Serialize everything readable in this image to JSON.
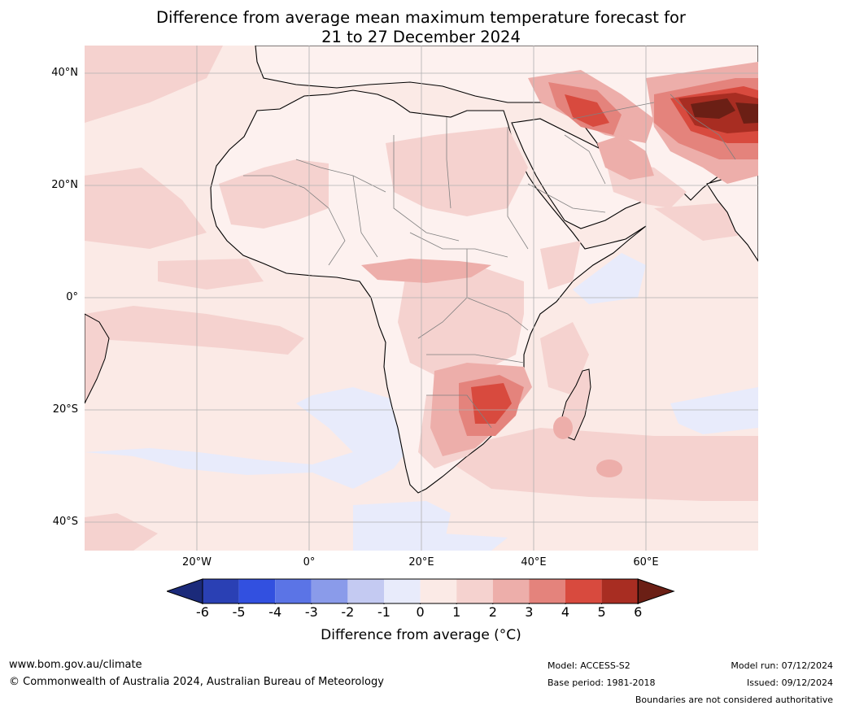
{
  "title": {
    "line1": "Difference from average mean maximum temperature forecast for",
    "line2": "21 to 27 December 2024"
  },
  "map": {
    "lat_labels": [
      "40°N",
      "20°N",
      "0°",
      "20°S",
      "40°S"
    ],
    "lon_labels": [
      "20°W",
      "0°",
      "20°E",
      "40°E",
      "60°E"
    ],
    "ocean_color": "#fbeae6",
    "land_fill": "#ffffff"
  },
  "colorbar": {
    "label": "Difference from average (°C)",
    "ticks": [
      "-6",
      "-5",
      "-4",
      "-3",
      "-2",
      "-1",
      "0",
      "1",
      "2",
      "3",
      "4",
      "5",
      "6"
    ],
    "colors": [
      "#1b2a7a",
      "#2a40b4",
      "#3250e0",
      "#5b74e6",
      "#8a9bea",
      "#c4caf2",
      "#e8ebfb",
      "#fbeae6",
      "#f5d2cf",
      "#edaeaa",
      "#e4837c",
      "#d84a3e",
      "#a82d22",
      "#6b1f15"
    ]
  },
  "footer": {
    "website": "www.bom.gov.au/climate",
    "copyright": "© Commonwealth of Australia 2024, Australian Bureau of Meteorology",
    "model": "Model: ACCESS-S2",
    "base_period": "Base period: 1981-2018",
    "model_run": "Model run: 07/12/2024",
    "issued": "Issued: 09/12/2024",
    "disclaimer": "Boundaries are not considered authoritative"
  }
}
